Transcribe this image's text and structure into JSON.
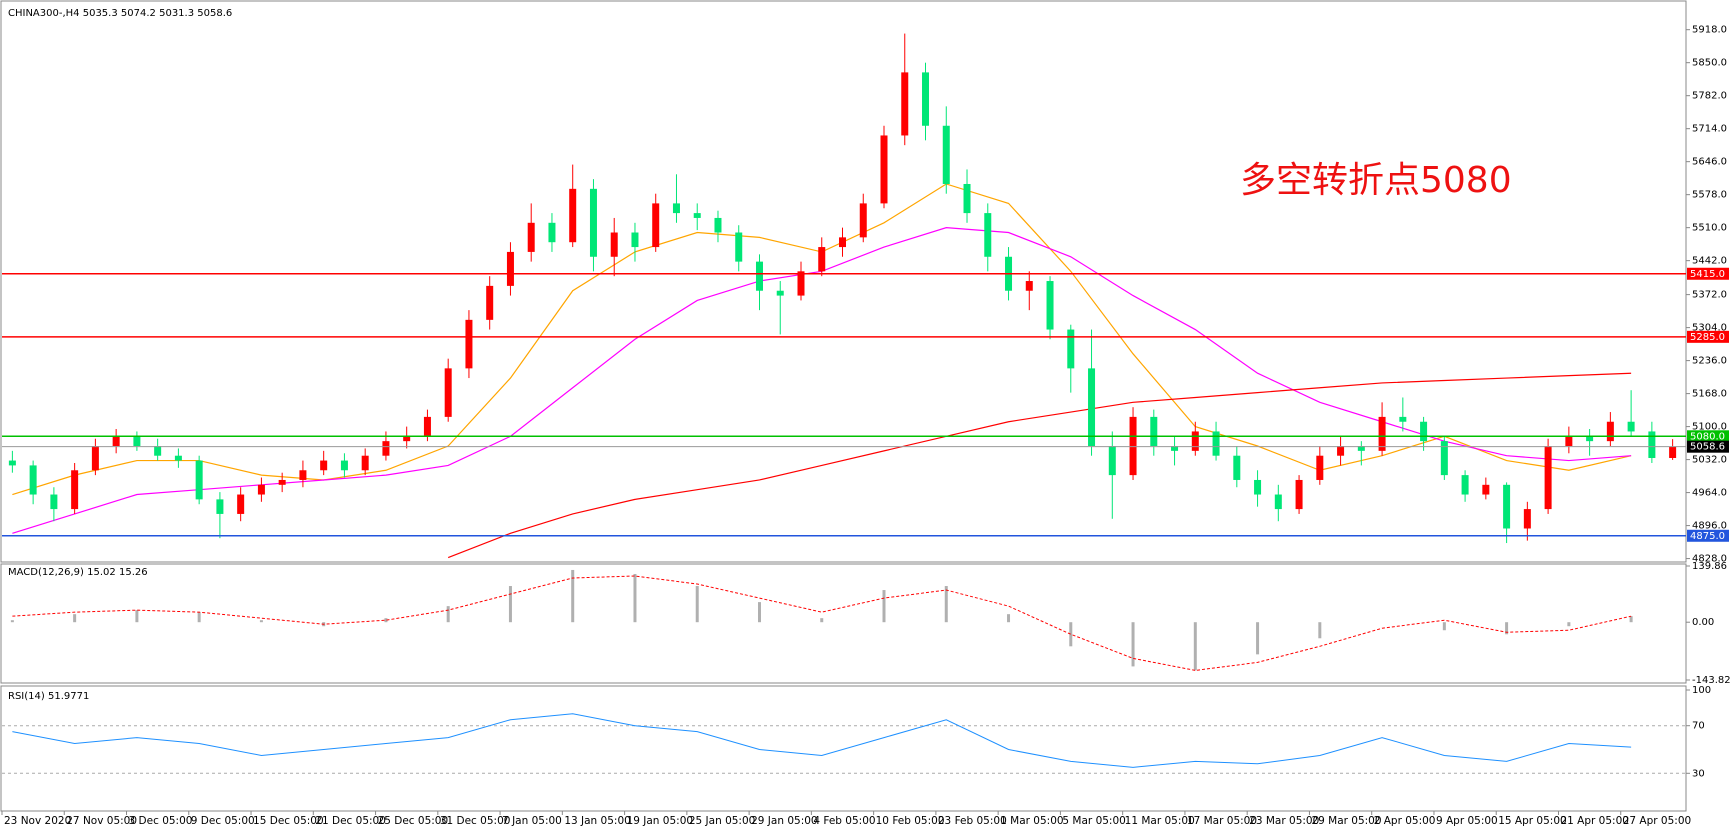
{
  "chart_data": {
    "type": "candlestick",
    "title": "CHINA300-,H4",
    "annotation": "多空转折点5080",
    "up_color": "#ff0000",
    "down_color": "#00e676",
    "candles": [
      [
        5030,
        5050,
        5005,
        5020
      ],
      [
        5020,
        5030,
        4940,
        4960
      ],
      [
        4960,
        4975,
        4905,
        4930
      ],
      [
        4930,
        5025,
        4920,
        5010
      ],
      [
        5010,
        5075,
        5000,
        5060
      ],
      [
        5060,
        5095,
        5045,
        5080
      ],
      [
        5080,
        5090,
        5050,
        5060
      ],
      [
        5060,
        5075,
        5030,
        5040
      ],
      [
        5040,
        5055,
        5015,
        5030
      ],
      [
        5030,
        5040,
        4940,
        4950
      ],
      [
        4950,
        4965,
        4870,
        4920
      ],
      [
        4920,
        4975,
        4905,
        4960
      ],
      [
        4960,
        4995,
        4945,
        4980
      ],
      [
        4980,
        5005,
        4965,
        4990
      ],
      [
        4990,
        5030,
        4975,
        5010
      ],
      [
        5010,
        5050,
        5000,
        5030
      ],
      [
        5030,
        5045,
        4995,
        5010
      ],
      [
        5010,
        5055,
        5000,
        5040
      ],
      [
        5040,
        5090,
        5030,
        5070
      ],
      [
        5070,
        5100,
        5055,
        5080
      ],
      [
        5080,
        5135,
        5070,
        5120
      ],
      [
        5120,
        5240,
        5110,
        5220
      ],
      [
        5220,
        5340,
        5200,
        5320
      ],
      [
        5320,
        5410,
        5300,
        5390
      ],
      [
        5390,
        5480,
        5370,
        5460
      ],
      [
        5460,
        5560,
        5440,
        5520
      ],
      [
        5520,
        5540,
        5460,
        5480
      ],
      [
        5480,
        5640,
        5470,
        5590
      ],
      [
        5590,
        5610,
        5420,
        5450
      ],
      [
        5450,
        5530,
        5410,
        5500
      ],
      [
        5500,
        5520,
        5440,
        5470
      ],
      [
        5470,
        5580,
        5460,
        5560
      ],
      [
        5560,
        5620,
        5520,
        5540
      ],
      [
        5540,
        5560,
        5505,
        5530
      ],
      [
        5530,
        5545,
        5480,
        5500
      ],
      [
        5500,
        5515,
        5420,
        5440
      ],
      [
        5440,
        5455,
        5340,
        5380
      ],
      [
        5380,
        5400,
        5290,
        5370
      ],
      [
        5370,
        5440,
        5360,
        5420
      ],
      [
        5420,
        5490,
        5410,
        5470
      ],
      [
        5470,
        5510,
        5450,
        5490
      ],
      [
        5490,
        5580,
        5480,
        5560
      ],
      [
        5560,
        5720,
        5550,
        5700
      ],
      [
        5700,
        5910,
        5680,
        5830
      ],
      [
        5830,
        5850,
        5690,
        5720
      ],
      [
        5720,
        5760,
        5580,
        5600
      ],
      [
        5600,
        5630,
        5520,
        5540
      ],
      [
        5540,
        5560,
        5420,
        5450
      ],
      [
        5450,
        5470,
        5360,
        5380
      ],
      [
        5380,
        5420,
        5340,
        5400
      ],
      [
        5400,
        5410,
        5280,
        5300
      ],
      [
        5300,
        5310,
        5170,
        5220
      ],
      [
        5220,
        5300,
        5040,
        5060
      ],
      [
        5060,
        5090,
        4910,
        5000
      ],
      [
        5000,
        5140,
        4990,
        5120
      ],
      [
        5120,
        5135,
        5040,
        5060
      ],
      [
        5060,
        5080,
        5020,
        5050
      ],
      [
        5050,
        5110,
        5040,
        5090
      ],
      [
        5090,
        5110,
        5030,
        5040
      ],
      [
        5040,
        5060,
        4975,
        4990
      ],
      [
        4990,
        5010,
        4935,
        4960
      ],
      [
        4960,
        4980,
        4905,
        4930
      ],
      [
        4930,
        5000,
        4920,
        4990
      ],
      [
        4990,
        5060,
        4980,
        5040
      ],
      [
        5040,
        5080,
        5020,
        5060
      ],
      [
        5060,
        5070,
        5020,
        5050
      ],
      [
        5050,
        5150,
        5040,
        5120
      ],
      [
        5120,
        5160,
        5090,
        5110
      ],
      [
        5110,
        5120,
        5050,
        5070
      ],
      [
        5070,
        5080,
        4990,
        5000
      ],
      [
        5000,
        5010,
        4945,
        4960
      ],
      [
        4960,
        4995,
        4950,
        4980
      ],
      [
        4980,
        4985,
        4860,
        4890
      ],
      [
        4890,
        4945,
        4865,
        4930
      ],
      [
        4930,
        5075,
        4920,
        5060
      ],
      [
        5060,
        5100,
        5045,
        5080
      ],
      [
        5080,
        5095,
        5040,
        5070
      ],
      [
        5070,
        5130,
        5060,
        5110
      ],
      [
        5110,
        5175,
        5080,
        5090
      ],
      [
        5090,
        5110,
        5025,
        5035.3
      ],
      [
        5035.3,
        5074.2,
        5031.3,
        5058.6
      ]
    ],
    "x_labels": [
      "23 Nov 2020",
      "27 Nov 05:00",
      "3 Dec 05:00",
      "9 Dec 05:00",
      "15 Dec 05:00",
      "21 Dec 05:00",
      "25 Dec 05:00",
      "31 Dec 05:00",
      "7 Jan 05:00",
      "13 Jan 05:00",
      "19 Jan 05:00",
      "25 Jan 05:00",
      "29 Jan 05:00",
      "4 Feb 05:00",
      "10 Feb 05:00",
      "23 Feb 05:00",
      "1 Mar 05:00",
      "5 Mar 05:00",
      "11 Mar 05:00",
      "17 Mar 05:00",
      "23 Mar 05:00",
      "29 Mar 05:00",
      "2 Apr 05:00",
      "9 Apr 05:00",
      "15 Apr 05:00",
      "21 Apr 05:00",
      "27 Apr 05:00"
    ],
    "ylim": [
      4823,
      5973
    ],
    "yticks": [
      {
        "value": 5918,
        "label": "5918.0"
      },
      {
        "value": 5850,
        "label": "5850.0"
      },
      {
        "value": 5782,
        "label": "5782.0"
      },
      {
        "value": 5714,
        "label": "5714.0"
      },
      {
        "value": 5646,
        "label": "5646.0"
      },
      {
        "value": 5578,
        "label": "5578.0"
      },
      {
        "value": 5510,
        "label": "5510.0"
      },
      {
        "value": 5442,
        "label": "5442.0"
      },
      {
        "value": 5372,
        "label": "5372.0"
      },
      {
        "value": 5304,
        "label": "5304.0"
      },
      {
        "value": 5236,
        "label": "5236.0"
      },
      {
        "value": 5168,
        "label": "5168.0"
      },
      {
        "value": 5100,
        "label": "5100.0"
      },
      {
        "value": 5032,
        "label": "5032.0"
      },
      {
        "value": 4964,
        "label": "4964.0"
      },
      {
        "value": 4896,
        "label": "4896.0"
      },
      {
        "value": 4828,
        "label": "4828.0"
      }
    ],
    "levels": [
      {
        "value": 5415,
        "label": "5415.0",
        "color": "#ff0000"
      },
      {
        "value": 5285,
        "label": "5285.0",
        "color": "#ff0000"
      },
      {
        "value": 5080,
        "label": "5080.0",
        "color": "#00c000"
      },
      {
        "value": 4875,
        "label": "4875.0",
        "color": "#2255dd"
      }
    ],
    "ma_x": [
      0,
      3,
      6,
      9,
      12,
      15,
      18,
      21,
      24,
      27,
      30,
      33,
      36,
      39,
      42,
      45,
      48,
      51,
      54,
      57,
      60,
      63,
      66,
      69,
      72,
      75,
      78
    ],
    "series": [
      {
        "color": "#ffa500",
        "values": [
          4960,
          5000,
          5030,
          5030,
          5000,
          4990,
          5010,
          5060,
          5200,
          5380,
          5460,
          5500,
          5490,
          5460,
          5520,
          5600,
          5560,
          5420,
          5250,
          5100,
          5060,
          5010,
          5040,
          5080,
          5030,
          5010,
          5040
        ]
      },
      {
        "color": "#ff00ff",
        "values": [
          4880,
          4920,
          4960,
          4970,
          4980,
          4990,
          5000,
          5020,
          5080,
          5180,
          5280,
          5360,
          5400,
          5420,
          5470,
          5510,
          5500,
          5450,
          5370,
          5300,
          5210,
          5150,
          5110,
          5070,
          5040,
          5030,
          5040
        ]
      },
      {
        "color": "#ff0000",
        "values": [
          null,
          null,
          null,
          null,
          null,
          null,
          null,
          4830,
          4880,
          4920,
          4950,
          4970,
          4990,
          5020,
          5050,
          5080,
          5110,
          5130,
          5150,
          5160,
          5170,
          5180,
          5190,
          5195,
          5200,
          5205,
          5210
        ]
      }
    ],
    "macd": {
      "title": "MACD(12,26,9)",
      "readout": [
        15.02,
        15.26
      ],
      "ylim": [
        -143.82,
        139.86
      ],
      "yticks": [
        139.86,
        {
          "value": 0,
          "label": "0.00"
        },
        -143.82
      ],
      "histogram": [
        5,
        20,
        30,
        25,
        5,
        -10,
        10,
        40,
        90,
        130,
        120,
        90,
        50,
        10,
        80,
        90,
        20,
        -60,
        -110,
        -120,
        -80,
        -40,
        0,
        -20,
        -30,
        -10,
        15
      ],
      "signal": [
        15,
        25,
        30,
        25,
        10,
        -5,
        5,
        30,
        70,
        110,
        115,
        95,
        60,
        25,
        60,
        80,
        40,
        -30,
        -90,
        -120,
        -100,
        -60,
        -15,
        5,
        -25,
        -20,
        15
      ],
      "hist_color": "#b0b0b0",
      "signal_color": "#ff0000"
    },
    "rsi": {
      "title": "RSI(14)",
      "readout": 51.9771,
      "ylim": [
        0,
        100
      ],
      "yticks": [
        30,
        70,
        100
      ],
      "color": "#1e90ff",
      "values": [
        65,
        55,
        60,
        55,
        45,
        50,
        55,
        60,
        75,
        80,
        70,
        65,
        50,
        45,
        60,
        75,
        50,
        40,
        35,
        40,
        38,
        45,
        60,
        45,
        40,
        55,
        52
      ]
    }
  }
}
